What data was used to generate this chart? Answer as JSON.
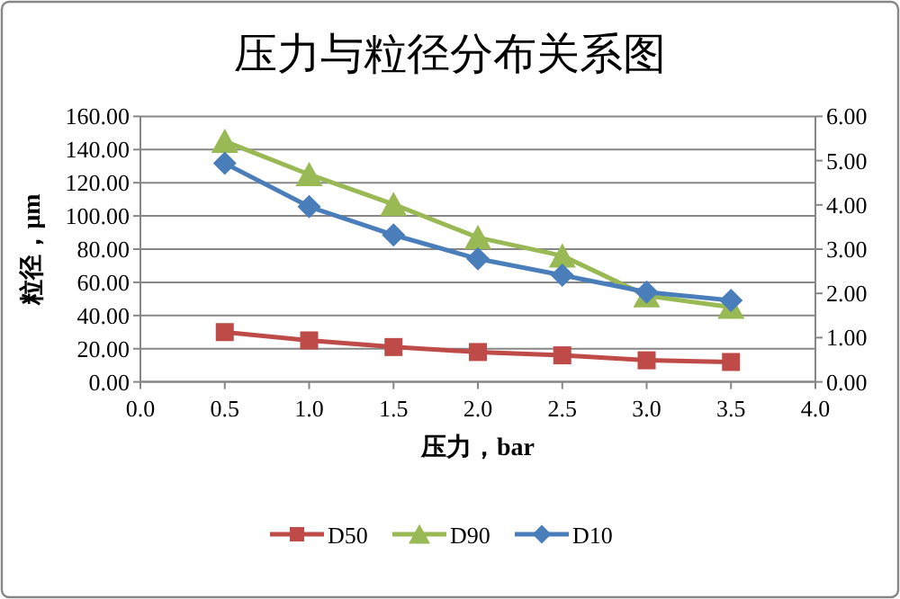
{
  "chart_data": {
    "type": "line",
    "title": "压力与粒径分布关系图",
    "xlabel": "压力，bar",
    "ylabel": "粒径，μm",
    "x": [
      0.5,
      1.0,
      1.5,
      2.0,
      2.5,
      3.0,
      3.5
    ],
    "xlim": [
      0,
      4
    ],
    "xticks": [
      {
        "value": 0,
        "label": "0.0"
      },
      {
        "value": 0.5,
        "label": "0.5"
      },
      {
        "value": 1,
        "label": "1.0"
      },
      {
        "value": 1.5,
        "label": "1.5"
      },
      {
        "value": 2,
        "label": "2.0"
      },
      {
        "value": 2.5,
        "label": "2.5"
      },
      {
        "value": 3,
        "label": "3.0"
      },
      {
        "value": 3.5,
        "label": "3.5"
      },
      {
        "value": 4,
        "label": "4.0"
      }
    ],
    "ylim": [
      0,
      160
    ],
    "yticks": [
      {
        "value": 0,
        "label": "0.00"
      },
      {
        "value": 20,
        "label": "20.00"
      },
      {
        "value": 40,
        "label": "40.00"
      },
      {
        "value": 60,
        "label": "60.00"
      },
      {
        "value": 80,
        "label": "80.00"
      },
      {
        "value": 100,
        "label": "100.00"
      },
      {
        "value": 120,
        "label": "120.00"
      },
      {
        "value": 140,
        "label": "140.00"
      },
      {
        "value": 160,
        "label": "160.00"
      }
    ],
    "y2lim": [
      0,
      6
    ],
    "y2ticks": [
      {
        "value": 0,
        "label": "0.00"
      },
      {
        "value": 1,
        "label": "1.00"
      },
      {
        "value": 2,
        "label": "2.00"
      },
      {
        "value": 3,
        "label": "3.00"
      },
      {
        "value": 4,
        "label": "4.00"
      },
      {
        "value": 5,
        "label": "5.00"
      },
      {
        "value": 6,
        "label": "6.00"
      }
    ],
    "grid": "y",
    "legend": "bottom",
    "series": [
      {
        "name": "D50",
        "color": "#be4b48",
        "marker": "square",
        "values": [
          30,
          25,
          21,
          18,
          16,
          13,
          12
        ]
      },
      {
        "name": "D90",
        "color": "#98b954",
        "marker": "triangle",
        "values": [
          145,
          125,
          107,
          87,
          76,
          52,
          45
        ]
      },
      {
        "name": "D10",
        "color": "#4a7ebb",
        "marker": "diamond",
        "axis": "y2",
        "values": [
          4.94,
          3.96,
          3.32,
          2.78,
          2.41,
          2.03,
          1.84
        ]
      }
    ]
  }
}
